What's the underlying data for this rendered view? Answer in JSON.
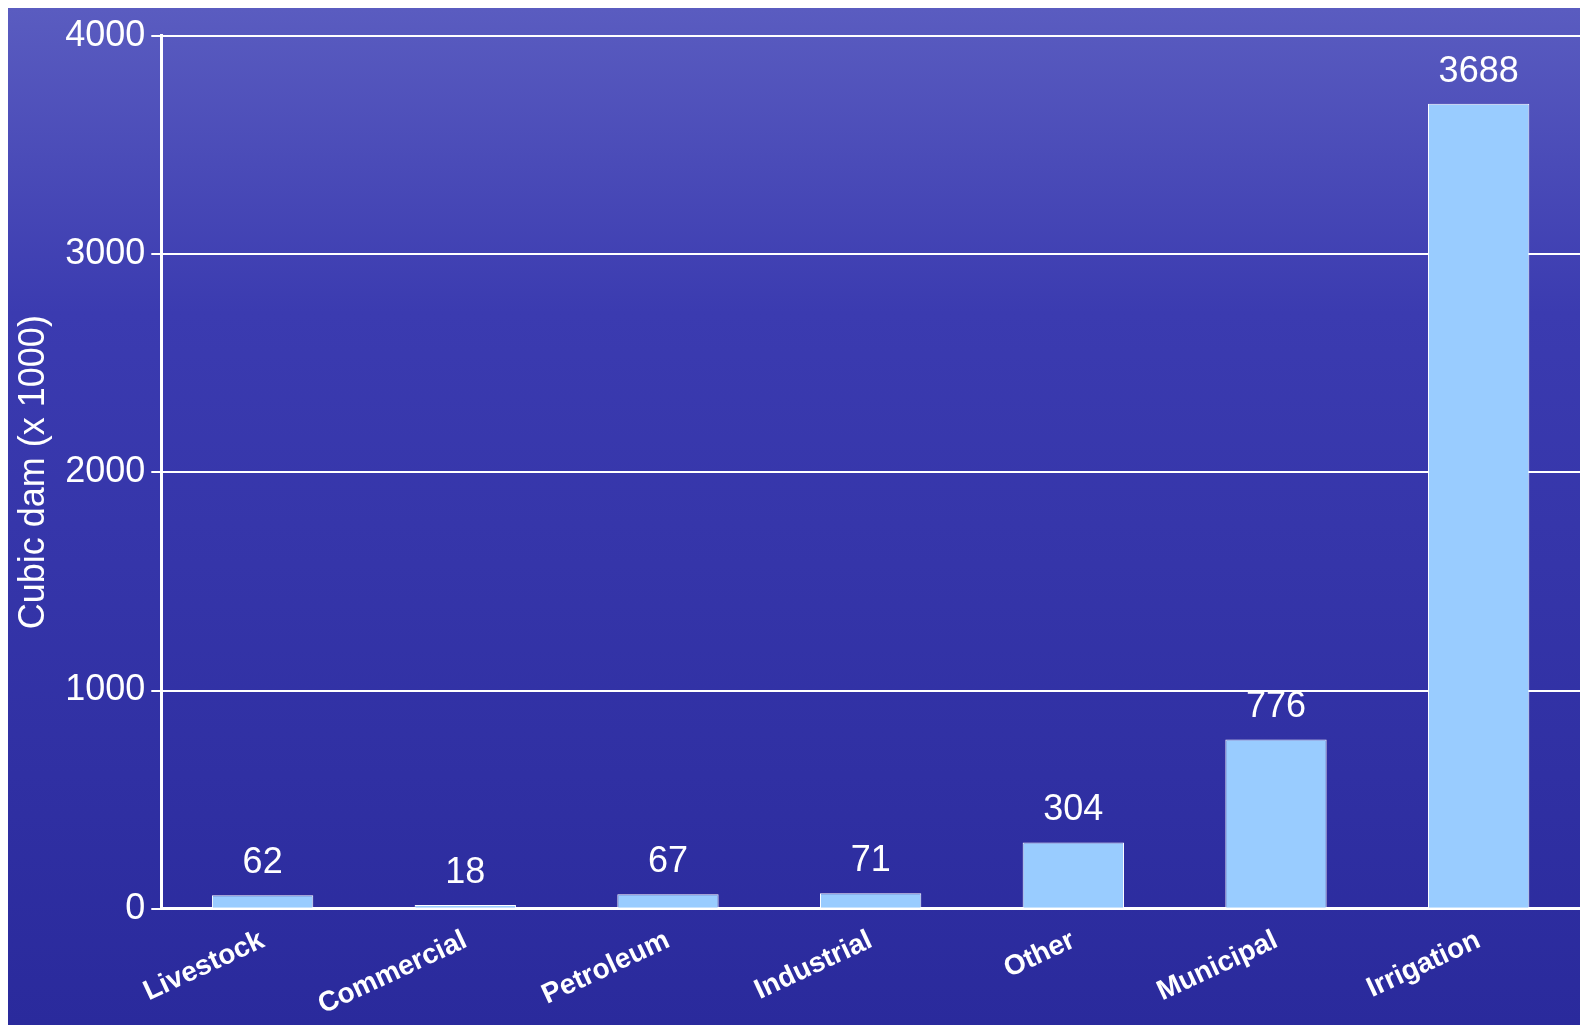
{
  "chart_data": {
    "type": "bar",
    "ylabel": "Cubic dam (x 1000)",
    "categories": [
      "Livestock",
      "Commercial",
      "Petroleum",
      "Industrial",
      "Other",
      "Municipal",
      "Irrigation"
    ],
    "values": [
      62,
      18,
      67,
      71,
      304,
      776,
      3688
    ],
    "color": "#99ccff",
    "ylim": [
      0,
      4000
    ],
    "yticks": [
      0,
      1000,
      2000,
      3000,
      4000
    ],
    "grid": "y",
    "legend": false,
    "data_labels": true
  }
}
